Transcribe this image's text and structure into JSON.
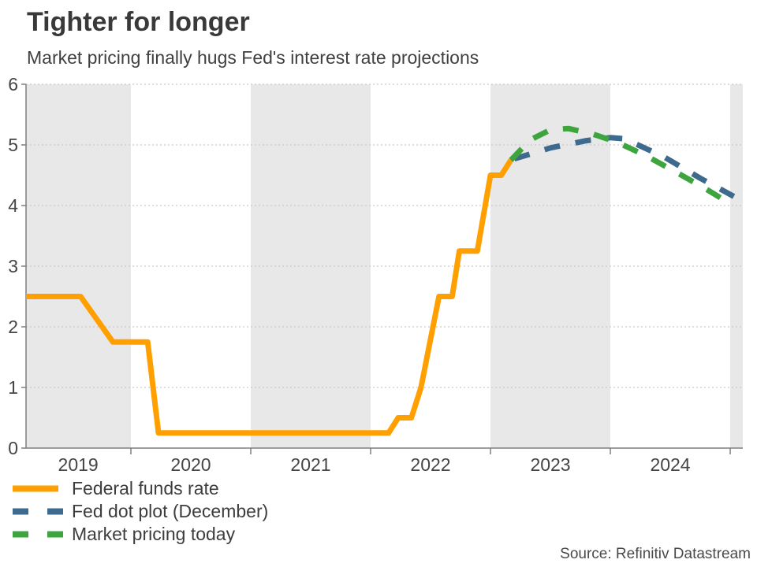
{
  "chart_data": {
    "type": "line",
    "title": "Tighter for longer",
    "subtitle": "Market pricing finally hugs Fed's interest rate projections",
    "source": "Source: Refinitiv Datastream",
    "xlabel": "",
    "ylabel": "",
    "x_domain": [
      2019.125,
      2025.105
    ],
    "y_domain": [
      0,
      6
    ],
    "y_ticks": [
      0,
      1,
      2,
      3,
      4,
      5,
      6
    ],
    "x_tick_lines": [
      2020,
      2021,
      2022,
      2023,
      2024,
      2025
    ],
    "x_labels": [
      {
        "text": "2019",
        "x": 2019.56
      },
      {
        "text": "2020",
        "x": 2020.5
      },
      {
        "text": "2021",
        "x": 2021.5
      },
      {
        "text": "2022",
        "x": 2022.5
      },
      {
        "text": "2023",
        "x": 2023.5
      },
      {
        "text": "2024",
        "x": 2024.5
      }
    ],
    "year_bands": [
      [
        2019.125,
        2020
      ],
      [
        2021,
        2022
      ],
      [
        2023,
        2024
      ],
      [
        2025,
        2025.105
      ]
    ],
    "grid": "dotted-horizontal",
    "legend_position": "bottom-left",
    "colors": {
      "band": "#E8E8E8",
      "grid": "#C9C9C9",
      "axis": "#7F7F7F",
      "tick_text": "#454545"
    },
    "series": [
      {
        "name": "Federal funds rate",
        "color": "#FFA000",
        "style": "solid",
        "stroke_width": 7,
        "points": [
          [
            2019.125,
            2.5
          ],
          [
            2019.58,
            2.5
          ],
          [
            2019.85,
            1.75
          ],
          [
            2020.14,
            1.75
          ],
          [
            2020.23,
            0.25
          ],
          [
            2022.15,
            0.25
          ],
          [
            2022.23,
            0.5
          ],
          [
            2022.34,
            0.5
          ],
          [
            2022.42,
            1.0
          ],
          [
            2022.57,
            2.5
          ],
          [
            2022.68,
            2.5
          ],
          [
            2022.74,
            3.25
          ],
          [
            2022.89,
            3.25
          ],
          [
            2023.0,
            4.5
          ],
          [
            2023.09,
            4.5
          ],
          [
            2023.17,
            4.75
          ]
        ]
      },
      {
        "name": "Fed dot plot (December)",
        "color": "#3E6A8E",
        "style": "dashed",
        "stroke_width": 7,
        "points": [
          [
            2023.2,
            4.77
          ],
          [
            2023.5,
            4.95
          ],
          [
            2023.8,
            5.07
          ],
          [
            2024.0,
            5.12
          ],
          [
            2024.12,
            5.1
          ],
          [
            2024.45,
            4.8
          ],
          [
            2024.75,
            4.45
          ],
          [
            2025.03,
            4.15
          ]
        ]
      },
      {
        "name": "Market pricing today",
        "color": "#3EA43E",
        "style": "dashed",
        "stroke_width": 7,
        "points": [
          [
            2023.17,
            4.75
          ],
          [
            2023.33,
            5.08
          ],
          [
            2023.5,
            5.25
          ],
          [
            2023.65,
            5.27
          ],
          [
            2023.85,
            5.18
          ],
          [
            2024.05,
            5.05
          ],
          [
            2024.3,
            4.82
          ],
          [
            2024.55,
            4.55
          ],
          [
            2024.8,
            4.27
          ],
          [
            2025.0,
            4.03
          ]
        ]
      }
    ]
  }
}
